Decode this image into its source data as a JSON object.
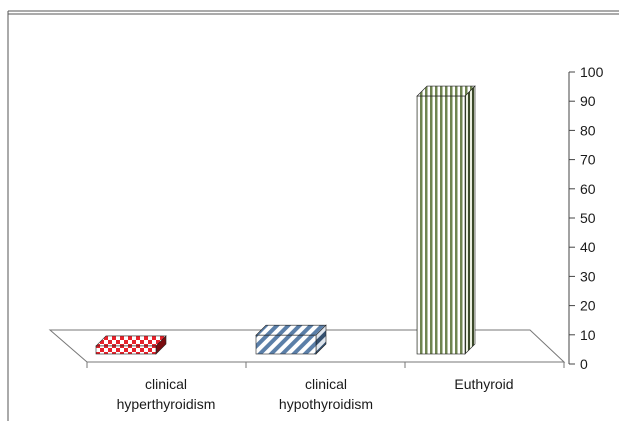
{
  "chart_data": {
    "type": "bar",
    "style": "3d",
    "categories": [
      [
        "clinical",
        "hyperthyroidism"
      ],
      [
        "clinical",
        "hypothyroidism"
      ],
      [
        "Euthyroid"
      ]
    ],
    "values": [
      3,
      7,
      96
    ],
    "ylim": [
      0,
      100
    ],
    "yticks": [
      "0",
      "10",
      "20",
      "30",
      "40",
      "50",
      "60",
      "70",
      "80",
      "90",
      "100"
    ],
    "y_axis_position": "right",
    "grid": false,
    "legend": "none",
    "bar_patterns": [
      "checkered",
      "diagonal-stripes",
      "vertical-stripes"
    ],
    "bar_colors": [
      "#e8222b",
      "#5b7fa8",
      "#6f8450"
    ]
  }
}
